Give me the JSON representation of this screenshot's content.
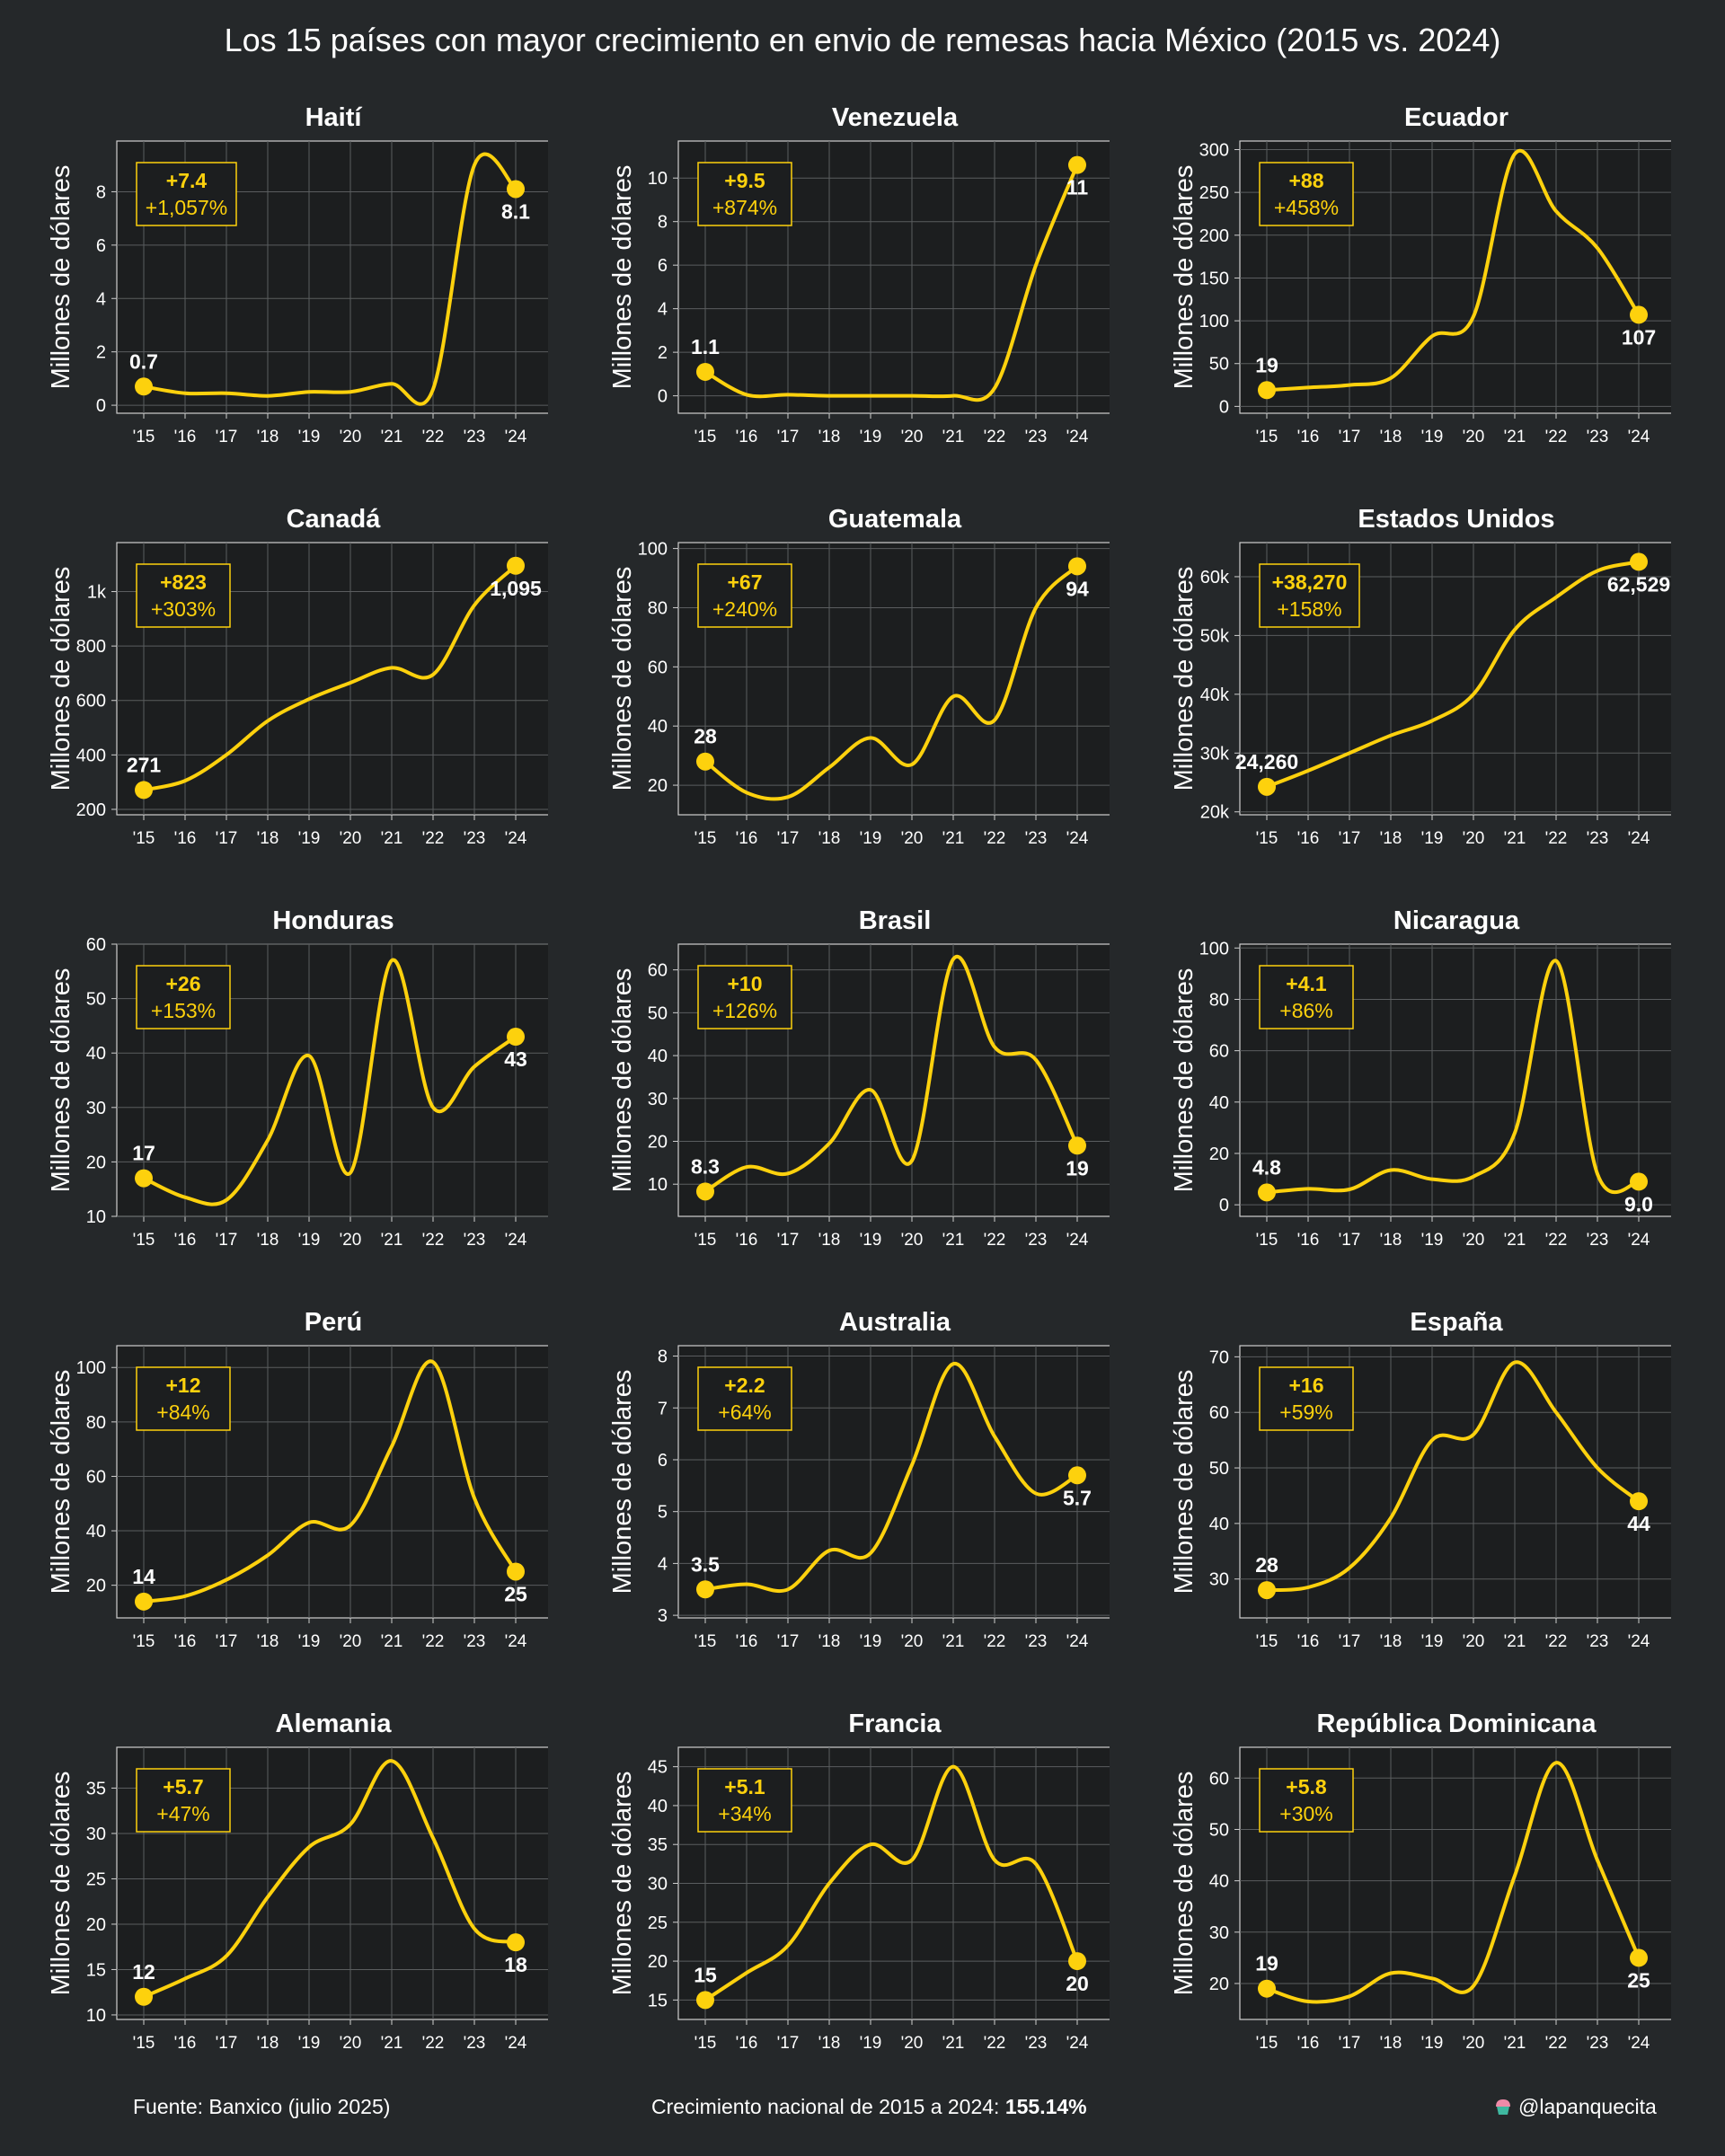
{
  "title": "Los 15 países con mayor crecimiento en envio de remesas hacia México (2015 vs. 2024)",
  "footer": {
    "source": "Fuente: Banxico (julio 2025)",
    "growth_label": "Crecimiento nacional de 2015 a 2024:",
    "growth_value": "155.14%",
    "handle": "@lapanquecita"
  },
  "colors": {
    "background": "#25282a",
    "plot_background": "#1c1e1f",
    "line": "#fdd10d",
    "grid": "#5a5d5f",
    "text": "#ffffff"
  },
  "chart_data": [
    {
      "type": "line",
      "title": "Haití",
      "ylabel": "Millones de dólares",
      "x": [
        "'15",
        "'16",
        "'17",
        "'18",
        "'19",
        "'20",
        "'21",
        "'22",
        "'23",
        "'24"
      ],
      "y": [
        0.7,
        0.45,
        0.45,
        0.35,
        0.5,
        0.5,
        0.8,
        0.6,
        9.0,
        8.1
      ],
      "ylim": [
        -0.3,
        9.9
      ],
      "yticks": [
        0,
        2,
        4,
        6,
        8
      ],
      "ytick_labels": [
        "0",
        "2",
        "4",
        "6",
        "8"
      ],
      "start_label": "0.7",
      "end_label": "8.1",
      "change_abs": "+7.4",
      "change_pct": "+1,057%"
    },
    {
      "type": "line",
      "title": "Venezuela",
      "ylabel": "Millones de dólares",
      "x": [
        "'15",
        "'16",
        "'17",
        "'18",
        "'19",
        "'20",
        "'21",
        "'22",
        "'23",
        "'24"
      ],
      "y": [
        1.1,
        0.05,
        0.05,
        0.0,
        0.0,
        0.0,
        0.0,
        0.35,
        6.0,
        10.6
      ],
      "ylim": [
        -0.8,
        11.7
      ],
      "yticks": [
        0,
        2,
        4,
        6,
        8,
        10
      ],
      "ytick_labels": [
        "0",
        "2",
        "4",
        "6",
        "8",
        "10"
      ],
      "start_label": "1.1",
      "end_label": "11",
      "change_abs": "+9.5",
      "change_pct": "+874%"
    },
    {
      "type": "line",
      "title": "Ecuador",
      "ylabel": "Millones de dólares",
      "x": [
        "'15",
        "'16",
        "'17",
        "'18",
        "'19",
        "'20",
        "'21",
        "'22",
        "'23",
        "'24"
      ],
      "y": [
        19,
        22,
        25,
        33,
        82,
        105,
        295,
        228,
        185,
        107
      ],
      "ylim": [
        -8,
        310
      ],
      "yticks": [
        0,
        50,
        100,
        150,
        200,
        250,
        300
      ],
      "ytick_labels": [
        "0",
        "50",
        "100",
        "150",
        "200",
        "250",
        "300"
      ],
      "start_label": "19",
      "end_label": "107",
      "change_abs": "+88",
      "change_pct": "+458%"
    },
    {
      "type": "line",
      "title": "Canadá",
      "ylabel": "Millones de dólares",
      "x": [
        "'15",
        "'16",
        "'17",
        "'18",
        "'19",
        "'20",
        "'21",
        "'22",
        "'23",
        "'24"
      ],
      "y": [
        271,
        305,
        400,
        525,
        605,
        665,
        720,
        695,
        950,
        1095
      ],
      "ylim": [
        180,
        1180
      ],
      "yticks": [
        200,
        400,
        600,
        800,
        1000
      ],
      "ytick_labels": [
        "200",
        "400",
        "600",
        "800",
        "1k"
      ],
      "start_label": "271",
      "end_label": "1,095",
      "change_abs": "+823",
      "change_pct": "+303%"
    },
    {
      "type": "line",
      "title": "Guatemala",
      "ylabel": "Millones de dólares",
      "x": [
        "'15",
        "'16",
        "'17",
        "'18",
        "'19",
        "'20",
        "'21",
        "'22",
        "'23",
        "'24"
      ],
      "y": [
        28,
        17.5,
        16,
        26,
        36,
        27,
        50,
        42,
        80,
        94
      ],
      "ylim": [
        10,
        102
      ],
      "yticks": [
        20,
        40,
        60,
        80,
        100
      ],
      "ytick_labels": [
        "20",
        "40",
        "60",
        "80",
        "100"
      ],
      "start_label": "28",
      "end_label": "94",
      "change_abs": "+67",
      "change_pct": "+240%"
    },
    {
      "type": "line",
      "title": "Estados Unidos",
      "ylabel": "Millones de dólares",
      "x": [
        "'15",
        "'16",
        "'17",
        "'18",
        "'19",
        "'20",
        "'21",
        "'22",
        "'23",
        "'24"
      ],
      "y": [
        24260,
        27000,
        30000,
        33000,
        35500,
        40000,
        51000,
        56500,
        61000,
        62529
      ],
      "ylim": [
        19500,
        65800
      ],
      "yticks": [
        20000,
        30000,
        40000,
        50000,
        60000
      ],
      "ytick_labels": [
        "20k",
        "30k",
        "40k",
        "50k",
        "60k"
      ],
      "start_label": "24,260",
      "end_label": "62,529",
      "change_abs": "+38,270",
      "change_pct": "+158%"
    },
    {
      "type": "line",
      "title": "Honduras",
      "ylabel": "Millones de dólares",
      "x": [
        "'15",
        "'16",
        "'17",
        "'18",
        "'19",
        "'20",
        "'21",
        "'22",
        "'23",
        "'24"
      ],
      "y": [
        17,
        13.5,
        13,
        24,
        39.5,
        18,
        57,
        30,
        37.5,
        43
      ],
      "ylim": [
        10,
        60
      ],
      "yticks": [
        10,
        20,
        30,
        40,
        50,
        60
      ],
      "ytick_labels": [
        "10",
        "20",
        "30",
        "40",
        "50",
        "60"
      ],
      "start_label": "17",
      "end_label": "43",
      "change_abs": "+26",
      "change_pct": "+153%"
    },
    {
      "type": "line",
      "title": "Brasil",
      "ylabel": "Millones de dólares",
      "x": [
        "'15",
        "'16",
        "'17",
        "'18",
        "'19",
        "'20",
        "'21",
        "'22",
        "'23",
        "'24"
      ],
      "y": [
        8.3,
        14,
        12.5,
        19.5,
        32,
        15.5,
        62.5,
        42,
        39,
        19
      ],
      "ylim": [
        2.5,
        66
      ],
      "yticks": [
        10,
        20,
        30,
        40,
        50,
        60
      ],
      "ytick_labels": [
        "10",
        "20",
        "30",
        "40",
        "50",
        "60"
      ],
      "start_label": "8.3",
      "end_label": "19",
      "change_abs": "+10",
      "change_pct": "+126%"
    },
    {
      "type": "line",
      "title": "Nicaragua",
      "ylabel": "Millones de dólares",
      "x": [
        "'15",
        "'16",
        "'17",
        "'18",
        "'19",
        "'20",
        "'21",
        "'22",
        "'23",
        "'24"
      ],
      "y": [
        4.8,
        6.2,
        6.0,
        13.5,
        10,
        11,
        28,
        95,
        12,
        9.0
      ],
      "ylim": [
        -4.5,
        101.5
      ],
      "yticks": [
        0,
        20,
        40,
        60,
        80,
        100
      ],
      "ytick_labels": [
        "0",
        "20",
        "40",
        "60",
        "80",
        "100"
      ],
      "start_label": "4.8",
      "end_label": "9.0",
      "change_abs": "+4.1",
      "change_pct": "+86%"
    },
    {
      "type": "line",
      "title": "Perú",
      "ylabel": "Millones de dólares",
      "x": [
        "'15",
        "'16",
        "'17",
        "'18",
        "'19",
        "'20",
        "'21",
        "'22",
        "'23",
        "'24"
      ],
      "y": [
        14,
        16,
        22,
        31,
        43,
        42,
        71,
        102,
        52,
        25
      ],
      "ylim": [
        8,
        108
      ],
      "yticks": [
        20,
        40,
        60,
        80,
        100
      ],
      "ytick_labels": [
        "20",
        "40",
        "60",
        "80",
        "100"
      ],
      "start_label": "14",
      "end_label": "25",
      "change_abs": "+12",
      "change_pct": "+84%"
    },
    {
      "type": "line",
      "title": "Australia",
      "ylabel": "Millones de dólares",
      "x": [
        "'15",
        "'16",
        "'17",
        "'18",
        "'19",
        "'20",
        "'21",
        "'22",
        "'23",
        "'24"
      ],
      "y": [
        3.5,
        3.6,
        3.5,
        4.25,
        4.2,
        5.9,
        7.85,
        6.45,
        5.35,
        5.7
      ],
      "ylim": [
        2.95,
        8.2
      ],
      "yticks": [
        3,
        4,
        5,
        6,
        7,
        8
      ],
      "ytick_labels": [
        "3",
        "4",
        "5",
        "6",
        "7",
        "8"
      ],
      "start_label": "3.5",
      "end_label": "5.7",
      "change_abs": "+2.2",
      "change_pct": "+64%"
    },
    {
      "type": "line",
      "title": "España",
      "ylabel": "Millones de dólares",
      "x": [
        "'15",
        "'16",
        "'17",
        "'18",
        "'19",
        "'20",
        "'21",
        "'22",
        "'23",
        "'24"
      ],
      "y": [
        28,
        28.5,
        32,
        41,
        55,
        56,
        69,
        60,
        50,
        44
      ],
      "ylim": [
        23,
        72
      ],
      "yticks": [
        30,
        40,
        50,
        60,
        70
      ],
      "ytick_labels": [
        "30",
        "40",
        "50",
        "60",
        "70"
      ],
      "start_label": "28",
      "end_label": "44",
      "change_abs": "+16",
      "change_pct": "+59%"
    },
    {
      "type": "line",
      "title": "Alemania",
      "ylabel": "Millones de dólares",
      "x": [
        "'15",
        "'16",
        "'17",
        "'18",
        "'19",
        "'20",
        "'21",
        "'22",
        "'23",
        "'24"
      ],
      "y": [
        12,
        14,
        16.5,
        23,
        28.5,
        31,
        38,
        29.5,
        19.5,
        18
      ],
      "ylim": [
        9.5,
        39.5
      ],
      "yticks": [
        10,
        15,
        20,
        25,
        30,
        35
      ],
      "ytick_labels": [
        "10",
        "15",
        "20",
        "25",
        "30",
        "35"
      ],
      "start_label": "12",
      "end_label": "18",
      "change_abs": "+5.7",
      "change_pct": "+47%"
    },
    {
      "type": "line",
      "title": "Francia",
      "ylabel": "Millones de dólares",
      "x": [
        "'15",
        "'16",
        "'17",
        "'18",
        "'19",
        "'20",
        "'21",
        "'22",
        "'23",
        "'24"
      ],
      "y": [
        15,
        18.5,
        22,
        30,
        35,
        33,
        45,
        33,
        32.5,
        20
      ],
      "ylim": [
        12.5,
        47.5
      ],
      "yticks": [
        15,
        20,
        25,
        30,
        35,
        40,
        45
      ],
      "ytick_labels": [
        "15",
        "20",
        "25",
        "30",
        "35",
        "40",
        "45"
      ],
      "start_label": "15",
      "end_label": "20",
      "change_abs": "+5.1",
      "change_pct": "+34%"
    },
    {
      "type": "line",
      "title": "República Dominicana",
      "ylabel": "Millones de dólares",
      "x": [
        "'15",
        "'16",
        "'17",
        "'18",
        "'19",
        "'20",
        "'21",
        "'22",
        "'23",
        "'24"
      ],
      "y": [
        19,
        16.5,
        17.5,
        22,
        21,
        19.5,
        41,
        63,
        44,
        25
      ],
      "ylim": [
        13,
        66
      ],
      "yticks": [
        20,
        30,
        40,
        50,
        60
      ],
      "ytick_labels": [
        "20",
        "30",
        "40",
        "50",
        "60"
      ],
      "start_label": "19",
      "end_label": "25",
      "change_abs": "+5.8",
      "change_pct": "+30%"
    }
  ]
}
